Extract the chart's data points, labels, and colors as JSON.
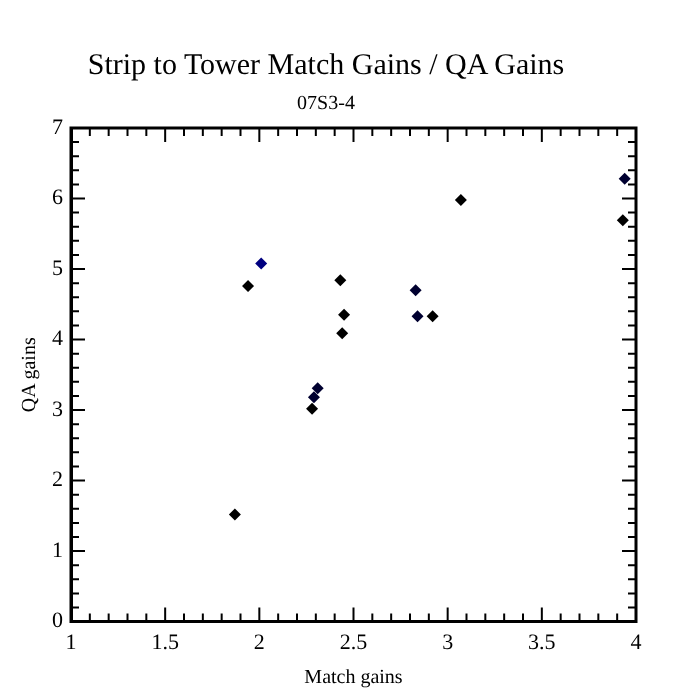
{
  "chart_data": {
    "type": "scatter",
    "title": "Strip to Tower Match Gains / QA Gains",
    "subtitle": "07S3-4",
    "xlabel": "Match gains",
    "ylabel": "QA gains",
    "x": [
      1.87,
      1.94,
      2.01,
      2.43,
      2.45,
      2.44,
      2.31,
      2.29,
      2.28,
      2.83,
      2.84,
      2.92,
      3.07,
      3.94,
      3.93
    ],
    "values": [
      1.52,
      4.76,
      5.08,
      4.84,
      4.35,
      4.09,
      3.31,
      3.18,
      3.02,
      4.7,
      4.33,
      4.33,
      5.98,
      6.28,
      5.69
    ],
    "colors": [
      "#000000",
      "#000000",
      "#000080",
      "#000000",
      "#000000",
      "#000000",
      "#000030",
      "#000030",
      "#000000",
      "#000030",
      "#000030",
      "#000000",
      "#000000",
      "#000030",
      "#000000"
    ],
    "xlim": [
      1,
      4
    ],
    "xticks": [
      1,
      1.5,
      2,
      2.5,
      3,
      3.5,
      4
    ],
    "ylim": [
      0,
      7
    ],
    "yticks": [
      0,
      1,
      2,
      3,
      4,
      5,
      6,
      7
    ],
    "grid": false,
    "legend": false,
    "marker": "diamond"
  }
}
